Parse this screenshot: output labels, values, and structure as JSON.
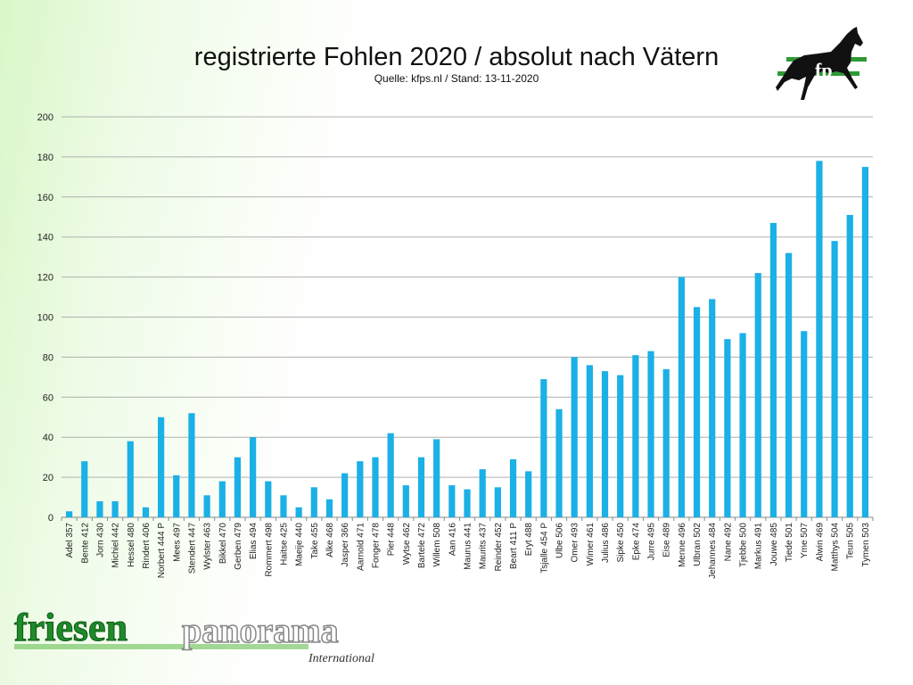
{
  "title": "registrierte Fohlen 2020 / absolut nach Vätern",
  "subtitle": "Quelle: kfps.nl / Stand: 13-11-2020",
  "logo": {
    "icon": "horse-icon",
    "initials": "fp"
  },
  "brand": {
    "name_part1": "friesen",
    "name_part2": "panorama",
    "tagline": "International"
  },
  "colors": {
    "bar": "#1bb0e6",
    "brand_green": "#1f8a2a",
    "grid": "#b0b0b0"
  },
  "chart_data": {
    "type": "bar",
    "title": "registrierte Fohlen 2020 / absolut nach Vätern",
    "xlabel": "",
    "ylabel": "",
    "ylim": [
      0,
      200
    ],
    "yticks": [
      0,
      20,
      40,
      60,
      80,
      100,
      120,
      140,
      160,
      180,
      200
    ],
    "grid": true,
    "categories": [
      "Adel 357",
      "Bente 412",
      "Jorn 430",
      "Michiel 442",
      "Hessel 480",
      "Rindert 406",
      "Norbert 444 P",
      "Mees 497",
      "Stendert 447",
      "Wylster 463",
      "Bikkel 470",
      "Gerben 479",
      "Elias 494",
      "Rommert 498",
      "Haitse 425",
      "Maeije 440",
      "Take 455",
      "Alke 468",
      "Jasper 366",
      "Aarnold 471",
      "Fonger 478",
      "Pier 448",
      "Wytse 462",
      "Bartele 472",
      "Willem 508",
      "Aan 416",
      "Maurus 441",
      "Maurits 437",
      "Reinder 452",
      "Beart 411 P",
      "Eryt 488",
      "Tsjalle 454 P",
      "Ulbe 506",
      "Omer 493",
      "Wimer 461",
      "Julius 486",
      "Sipke 450",
      "Epke 474",
      "Jurre 495",
      "Eise 489",
      "Menne 496",
      "Ulbran 502",
      "Jehannes 484",
      "Nane 492",
      "Tjebbe 500",
      "Markus 491",
      "Jouwe 485",
      "Tiede 501",
      "Yme 507",
      "Alwin 469",
      "Matthys 504",
      "Teun 505",
      "Tymen 503"
    ],
    "values": [
      3,
      28,
      8,
      8,
      38,
      5,
      50,
      21,
      52,
      11,
      18,
      30,
      40,
      18,
      11,
      5,
      15,
      9,
      22,
      28,
      30,
      42,
      16,
      30,
      39,
      16,
      14,
      24,
      15,
      29,
      23,
      69,
      54,
      80,
      76,
      73,
      71,
      81,
      83,
      74,
      120,
      105,
      109,
      89,
      92,
      122,
      147,
      132,
      93,
      178,
      138,
      151,
      175
    ]
  }
}
